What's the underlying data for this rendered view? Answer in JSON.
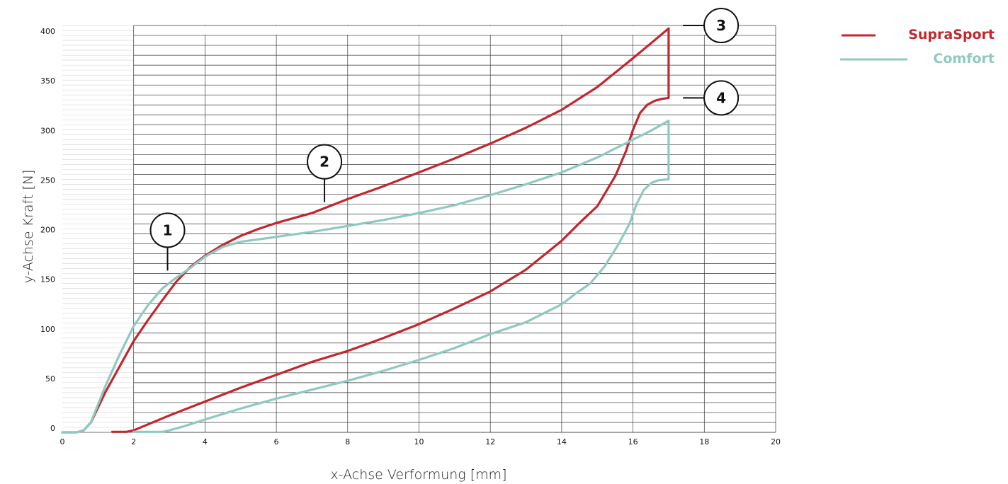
{
  "chart_data": {
    "type": "line",
    "title": "",
    "xlabel": "x-Achse Verformung [mm]",
    "ylabel": "y-Achse Kraft  [N]",
    "xlim": [
      0,
      20
    ],
    "ylim": [
      0,
      420
    ],
    "x_ticks": [
      0,
      2,
      4,
      6,
      8,
      10,
      12,
      14,
      16,
      18,
      20
    ],
    "y_ticks": [
      0,
      50,
      100,
      150,
      200,
      250,
      300,
      350,
      400
    ],
    "grid": true,
    "legend_position": "top-right",
    "series": [
      {
        "name": "SupraSport",
        "color": "#c1272d",
        "loading": [
          [
            0,
            0
          ],
          [
            0.4,
            0
          ],
          [
            0.6,
            2
          ],
          [
            0.8,
            10
          ],
          [
            1.2,
            40
          ],
          [
            1.6,
            66
          ],
          [
            2.0,
            92
          ],
          [
            2.4,
            113
          ],
          [
            2.8,
            133
          ],
          [
            3.2,
            152
          ],
          [
            3.6,
            167
          ],
          [
            4.0,
            178
          ],
          [
            4.5,
            189
          ],
          [
            5.0,
            198
          ],
          [
            5.5,
            205
          ],
          [
            6.0,
            211
          ],
          [
            7.0,
            221
          ],
          [
            8.0,
            235
          ],
          [
            9.0,
            248
          ],
          [
            10.0,
            262
          ],
          [
            11.0,
            276
          ],
          [
            12.0,
            291
          ],
          [
            13.0,
            307
          ],
          [
            14.0,
            325
          ],
          [
            15.0,
            348
          ],
          [
            16.0,
            377
          ],
          [
            16.5,
            392
          ],
          [
            17.0,
            407
          ]
        ],
        "drop": [
          [
            17.0,
            407
          ],
          [
            17.0,
            337
          ]
        ],
        "unloading": [
          [
            17.0,
            337
          ],
          [
            16.8,
            336
          ],
          [
            16.6,
            334
          ],
          [
            16.4,
            330
          ],
          [
            16.2,
            322
          ],
          [
            16.0,
            305
          ],
          [
            15.8,
            283
          ],
          [
            15.5,
            258
          ],
          [
            15.0,
            228
          ],
          [
            14.5,
            211
          ],
          [
            14.0,
            193
          ],
          [
            13.0,
            164
          ],
          [
            12.0,
            142
          ],
          [
            11.0,
            125
          ],
          [
            10.0,
            109
          ],
          [
            9.0,
            95
          ],
          [
            8.0,
            82
          ],
          [
            7.0,
            71
          ],
          [
            6.0,
            58
          ],
          [
            5.0,
            45
          ],
          [
            4.0,
            31
          ],
          [
            3.0,
            17
          ],
          [
            2.4,
            8
          ],
          [
            2.0,
            2
          ],
          [
            1.8,
            0.5
          ],
          [
            1.4,
            0.5
          ]
        ]
      },
      {
        "name": "Comfort",
        "color": "#8fc9c1",
        "loading": [
          [
            0,
            0
          ],
          [
            0.4,
            0
          ],
          [
            0.6,
            2
          ],
          [
            0.8,
            10
          ],
          [
            1.2,
            46
          ],
          [
            1.6,
            78
          ],
          [
            2.0,
            107
          ],
          [
            2.4,
            128
          ],
          [
            2.8,
            145
          ],
          [
            3.2,
            156
          ],
          [
            3.6,
            166
          ],
          [
            4.0,
            177
          ],
          [
            4.5,
            187
          ],
          [
            5.0,
            192
          ],
          [
            6.0,
            197
          ],
          [
            7.0,
            202
          ],
          [
            8.0,
            208
          ],
          [
            9.0,
            214
          ],
          [
            10.0,
            221
          ],
          [
            11.0,
            229
          ],
          [
            12.0,
            239
          ],
          [
            13.0,
            250
          ],
          [
            14.0,
            262
          ],
          [
            15.0,
            277
          ],
          [
            16.0,
            295
          ],
          [
            16.5,
            304
          ],
          [
            17.0,
            314
          ]
        ],
        "drop": [
          [
            17.0,
            314
          ],
          [
            17.0,
            255
          ]
        ],
        "unloading": [
          [
            17.0,
            255
          ],
          [
            16.7,
            254
          ],
          [
            16.5,
            251
          ],
          [
            16.3,
            244
          ],
          [
            16.1,
            230
          ],
          [
            15.9,
            210
          ],
          [
            15.6,
            190
          ],
          [
            15.2,
            167
          ],
          [
            14.8,
            150
          ],
          [
            14.4,
            140
          ],
          [
            14.0,
            129
          ],
          [
            13.0,
            111
          ],
          [
            12.0,
            99
          ],
          [
            11.0,
            85
          ],
          [
            10.0,
            73
          ],
          [
            9.0,
            62
          ],
          [
            8.0,
            52
          ],
          [
            7.0,
            43
          ],
          [
            6.0,
            34
          ],
          [
            5.0,
            24
          ],
          [
            4.0,
            13
          ],
          [
            3.4,
            6
          ],
          [
            3.0,
            2
          ],
          [
            2.8,
            0.5
          ],
          [
            2.0,
            0.5
          ]
        ]
      }
    ],
    "annotations": [
      {
        "label": "1",
        "point": [
          2.95,
          163
        ]
      },
      {
        "label": "2",
        "point": [
          7.35,
          232
        ]
      },
      {
        "label": "3",
        "point": [
          17.4,
          410
        ]
      },
      {
        "label": "4",
        "point": [
          17.4,
          337
        ]
      }
    ]
  }
}
